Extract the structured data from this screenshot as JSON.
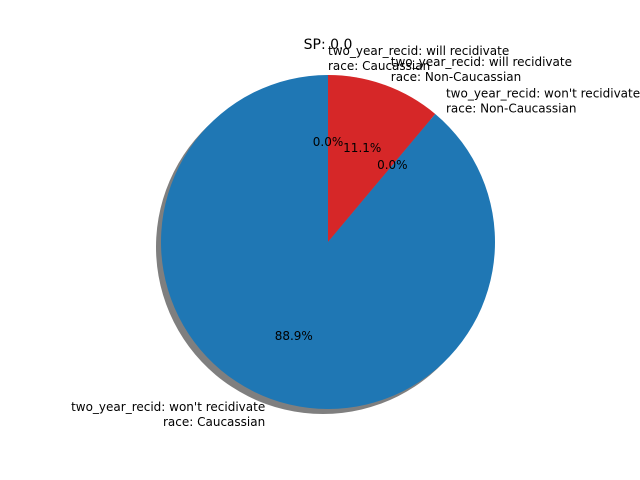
{
  "chart_data": {
    "type": "pie",
    "title": "SP: 0.0",
    "start_angle_deg": 90,
    "direction": "clockwise",
    "shadow": true,
    "slices": [
      {
        "label_lines": [
          "two_year_recid: will recidivate",
          "race: Caucassian"
        ],
        "value": 0.0,
        "pct_label": "0.0%",
        "color": "#1f77b4",
        "label_align": "start"
      },
      {
        "label_lines": [
          "two_year_recid: will recidivate",
          "race: Non-Caucassian"
        ],
        "value": 11.1,
        "pct_label": "11.1%",
        "color": "#d62728",
        "label_align": "start"
      },
      {
        "label_lines": [
          "two_year_recid: won't recidivate",
          "race: Non-Caucassian"
        ],
        "value": 0.0,
        "pct_label": "0.0%",
        "color": "#d62728",
        "label_align": "start"
      },
      {
        "label_lines": [
          "two_year_recid: won't recidivate",
          "race: Caucassian"
        ],
        "value": 88.9,
        "pct_label": "88.9%",
        "color": "#1f77b4",
        "label_align": "end"
      }
    ]
  }
}
